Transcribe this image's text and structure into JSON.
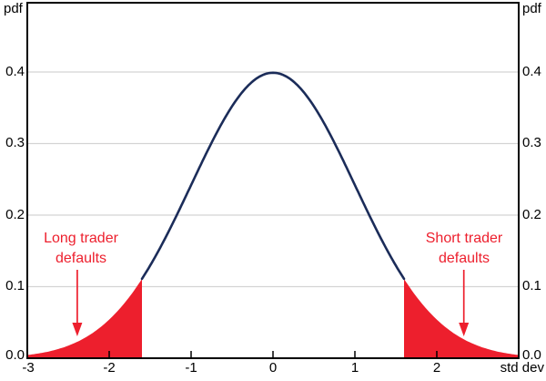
{
  "chart_data": {
    "type": "line",
    "title": "",
    "ylabel_left": "pdf",
    "ylabel_right": "pdf",
    "xlabel": "std dev",
    "curve": {
      "name": "standard-normal-pdf",
      "mean": 0,
      "sd": 1,
      "peak_value": 0.3989,
      "x_range": [
        -3,
        3
      ]
    },
    "xlim": [
      -3,
      3
    ],
    "ylim": [
      0,
      0.497
    ],
    "grid": "horizontal",
    "legend": "none",
    "x_tick_labels": [
      "-3",
      "-2",
      "-1",
      "0",
      "1",
      "2"
    ],
    "x_tick_values": [
      -3,
      -2,
      -1,
      0,
      1,
      2
    ],
    "x_tick_marks": [
      -2,
      -1,
      0,
      1,
      2
    ],
    "y_tick_labels": [
      "0.0",
      "0.1",
      "0.2",
      "0.3",
      "0.4"
    ],
    "y_tick_values": [
      0,
      0.1,
      0.2,
      0.3,
      0.4
    ],
    "shaded_regions": [
      {
        "from": -3,
        "to": -1.6,
        "label": "Long trader defaults"
      },
      {
        "from": 1.6,
        "to": 3,
        "label": "Short trader defaults"
      }
    ],
    "annotations": [
      {
        "lines": [
          "Long trader",
          "defaults"
        ],
        "arrow_x": -2.39,
        "side": "left"
      },
      {
        "lines": [
          "Short trader",
          "defaults"
        ],
        "arrow_x": 2.33,
        "side": "right"
      }
    ],
    "colors": {
      "curve": "#1B2C59",
      "shade": "#ED1F2D",
      "annotation_text": "#ED1F2D",
      "arrow": "#ED1F2D",
      "gridline": "#D4D4D4",
      "axis": "#000000"
    }
  }
}
